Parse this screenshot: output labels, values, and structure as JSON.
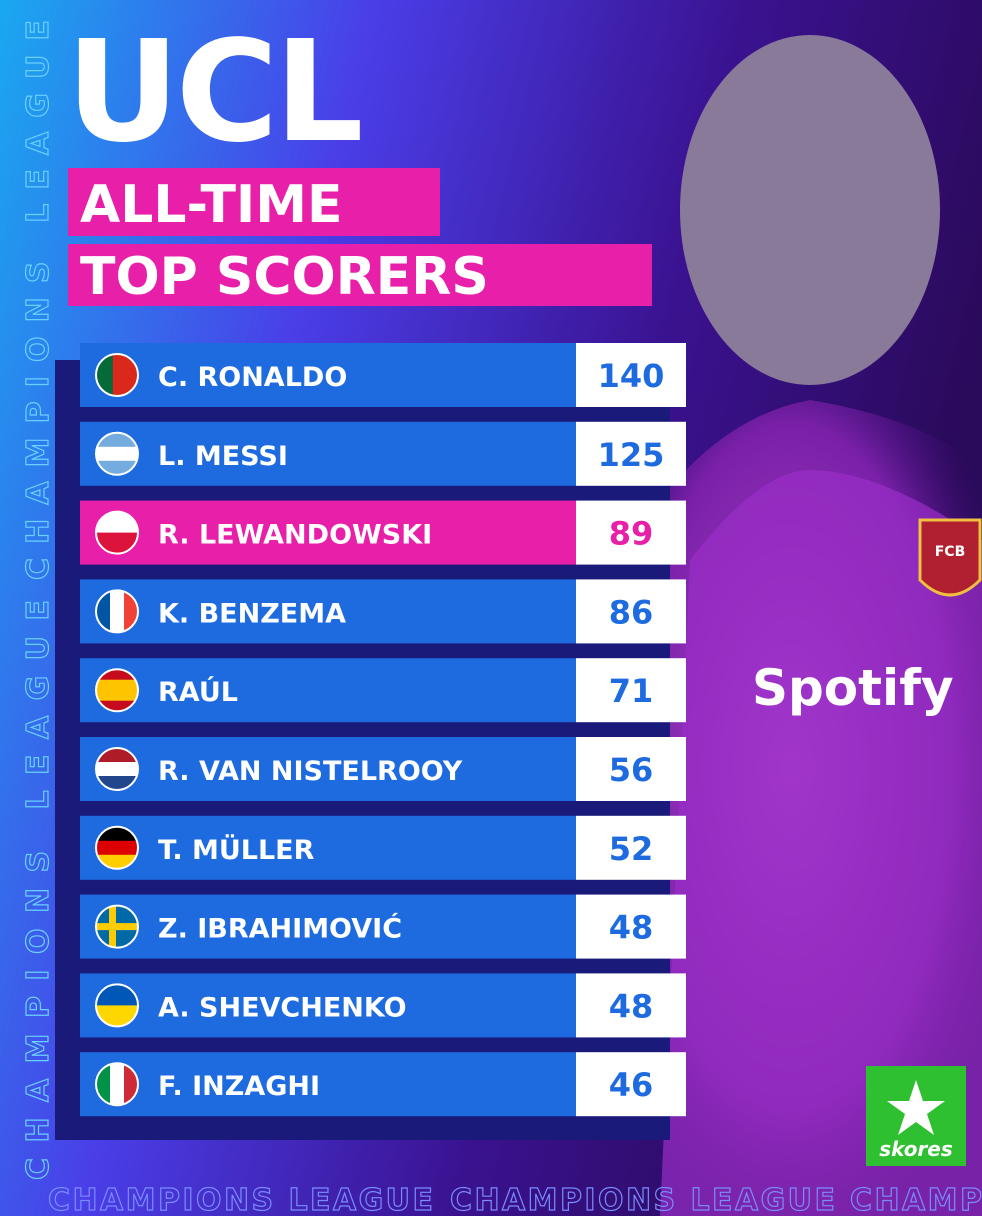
{
  "header": {
    "title": "UCL",
    "subtitle_lines": [
      "ALL-TIME",
      "TOP SCORERS"
    ]
  },
  "table": {
    "rows": [
      {
        "name": "C. RONALDO",
        "goals": "140"
      },
      {
        "name": "L. MESSI",
        "goals": "125"
      },
      {
        "name": "R. LEWANDOWSKI",
        "goals": "89"
      },
      {
        "name": "K. BENZEMA",
        "goals": "86"
      },
      {
        "name": "RAÚL",
        "goals": "71"
      },
      {
        "name": "R. VAN NISTELROOY",
        "goals": "56"
      },
      {
        "name": "T. MÜLLER",
        "goals": "52"
      },
      {
        "name": "Z. IBRAHIMOVIĆ",
        "goals": "48"
      },
      {
        "name": "A. SHEVCHENKO",
        "goals": "48"
      },
      {
        "name": "F. INZAGHI",
        "goals": "46"
      }
    ]
  },
  "watermark": "CHAMPIONS LEAGUE",
  "photo": {
    "crest": "FCB",
    "sponsor": "Spotify"
  },
  "logo": "skores"
}
